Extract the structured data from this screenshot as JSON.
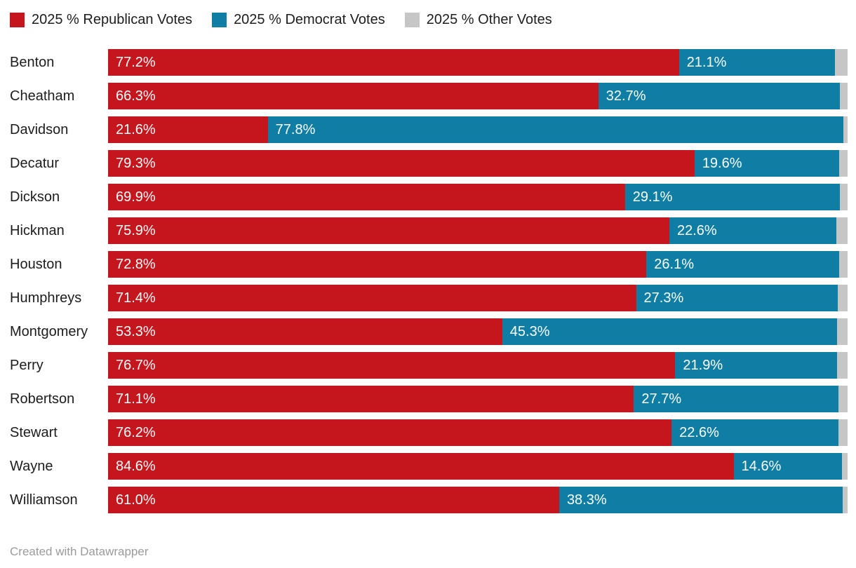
{
  "legend": {
    "items": [
      {
        "label": "2025 % Republican Votes",
        "color": "#c4161c"
      },
      {
        "label": "2025 % Democrat Votes",
        "color": "#0e7ea4"
      },
      {
        "label": "2025 % Other Votes",
        "color": "#c6c6c6"
      }
    ]
  },
  "footer": {
    "credit": "Created with Datawrapper"
  },
  "chart_data": {
    "type": "bar",
    "stacked": true,
    "orientation": "horizontal",
    "xlim": [
      0,
      100
    ],
    "grid": false,
    "legend_position": "top",
    "value_format": "0.0%",
    "categories": [
      "Benton",
      "Cheatham",
      "Davidson",
      "Decatur",
      "Dickson",
      "Hickman",
      "Houston",
      "Humphreys",
      "Montgomery",
      "Perry",
      "Robertson",
      "Stewart",
      "Wayne",
      "Williamson"
    ],
    "series": [
      {
        "name": "2025 % Republican Votes",
        "color": "#c4161c",
        "labeled": true,
        "values": [
          77.2,
          66.3,
          21.6,
          79.3,
          69.9,
          75.9,
          72.8,
          71.4,
          53.3,
          76.7,
          71.1,
          76.2,
          84.6,
          61.0
        ]
      },
      {
        "name": "2025 % Democrat Votes",
        "color": "#0e7ea4",
        "labeled": true,
        "values": [
          21.1,
          32.7,
          77.8,
          19.6,
          29.1,
          22.6,
          26.1,
          27.3,
          45.3,
          21.9,
          27.7,
          22.6,
          14.6,
          38.3
        ]
      },
      {
        "name": "2025 % Other Votes",
        "color": "#c6c6c6",
        "labeled": false,
        "values": [
          1.7,
          1.0,
          0.6,
          1.1,
          1.0,
          1.5,
          1.1,
          1.3,
          1.4,
          1.4,
          1.2,
          1.2,
          0.8,
          0.7
        ]
      }
    ]
  }
}
